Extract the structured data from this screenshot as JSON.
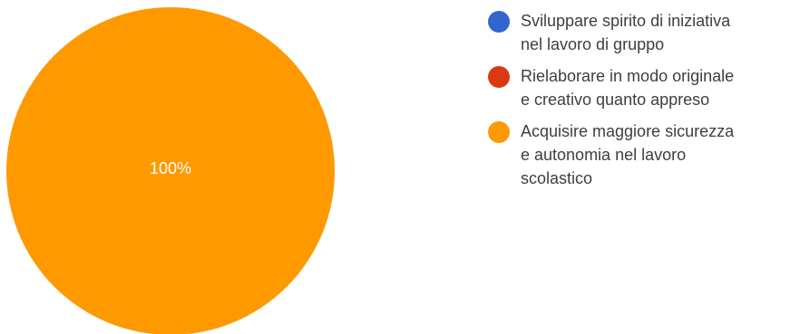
{
  "chart_data": {
    "type": "pie",
    "title": "",
    "legend_position": "right",
    "slices": [
      {
        "label": "Sviluppare spirito di iniziativa nel lavoro di gruppo",
        "value": 0,
        "color": "#3366cc"
      },
      {
        "label": "Rielaborare in modo originale e creativo quanto appreso",
        "value": 0,
        "color": "#dc3912"
      },
      {
        "label": "Acquisire maggiore sicurezza e autonomia nel lavoro scolastico",
        "value": 100,
        "color": "#ff9900"
      }
    ],
    "data_labels": [
      "100%"
    ]
  },
  "legend": {
    "items": [
      {
        "lines": [
          "Sviluppare spirito di iniziativa",
          "nel lavoro di gruppo"
        ],
        "color": "#3366cc"
      },
      {
        "lines": [
          "Rielaborare in modo originale",
          "e creativo quanto appreso"
        ],
        "color": "#dc3912"
      },
      {
        "lines": [
          "Acquisire maggiore sicurezza",
          "e autonomia nel lavoro",
          "scolastico"
        ],
        "color": "#ff9900"
      }
    ]
  }
}
